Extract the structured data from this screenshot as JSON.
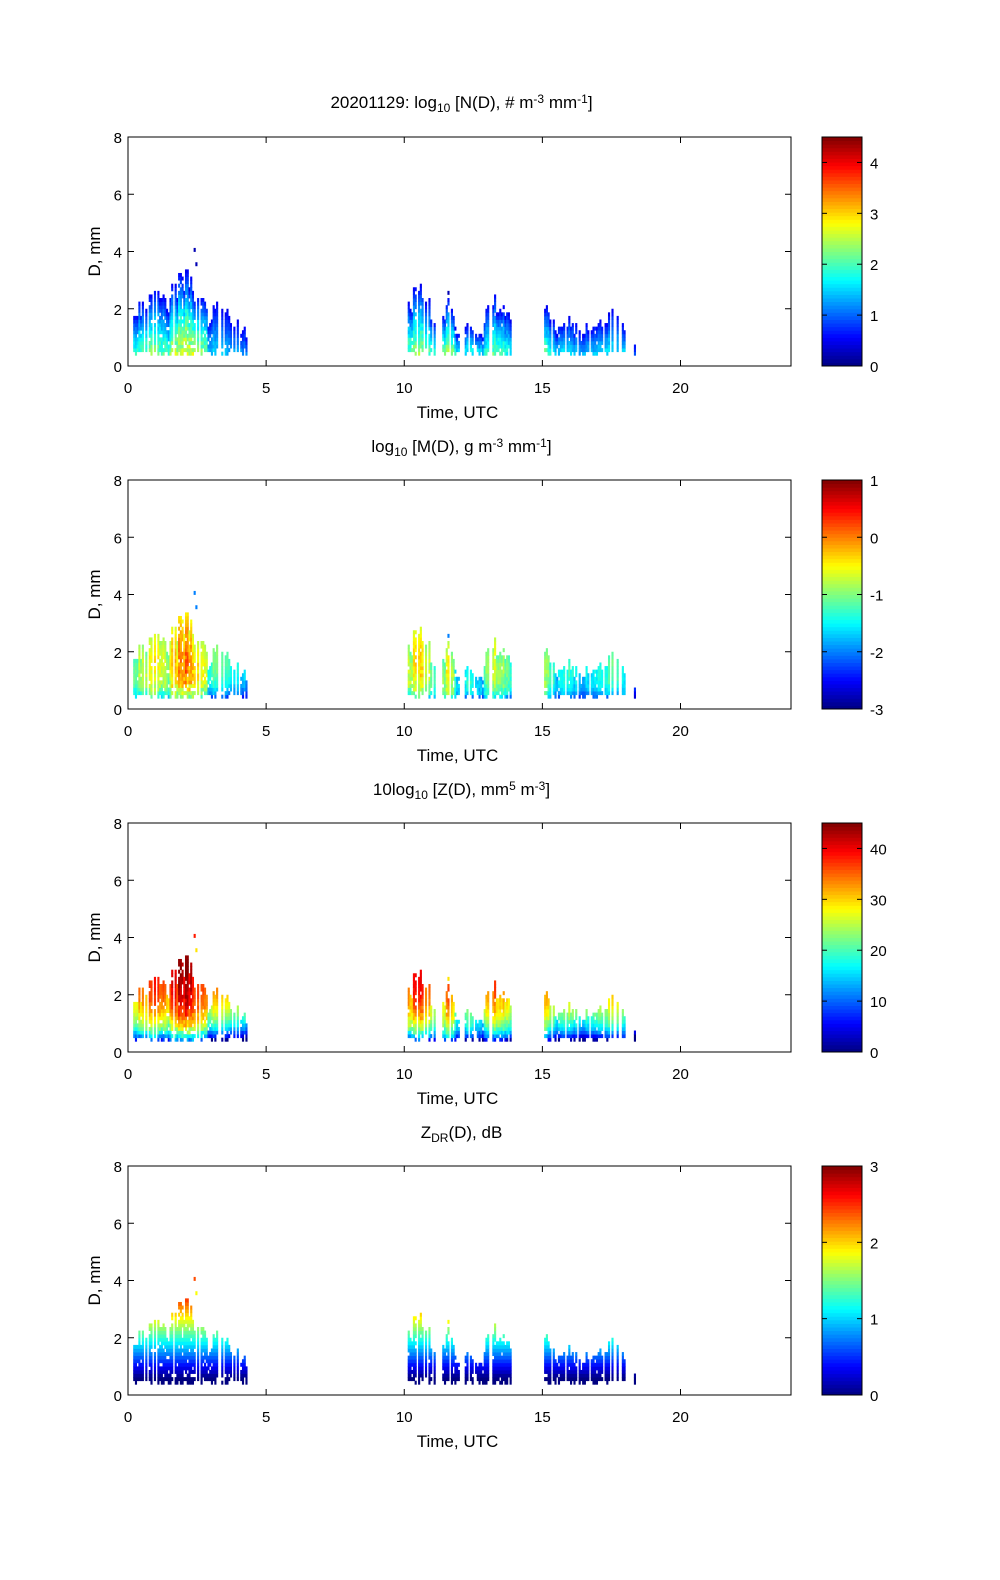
{
  "figure": {
    "date": "20201129",
    "background": "#ffffff"
  },
  "chart_data": [
    {
      "type": "heatmap",
      "title": {
        "prefix": "20201129: ",
        "parts": [
          [
            "log",
            ""
          ],
          [
            "10",
            "sub"
          ],
          [
            " [N(D), # m",
            ""
          ],
          [
            "-3",
            "sup"
          ],
          [
            " mm",
            ""
          ],
          [
            "-1",
            "sup"
          ],
          [
            "]",
            ""
          ]
        ]
      },
      "title_text": "20201129: log10 [N(D), # m-3 mm-1]",
      "xlabel": "Time, UTC",
      "ylabel": "D, mm",
      "xlim": [
        0,
        24
      ],
      "ylim": [
        0,
        8
      ],
      "xticks": [
        0,
        5,
        10,
        15,
        20
      ],
      "yticks": [
        0,
        2,
        4,
        6,
        8
      ],
      "colorbar": {
        "min": 0,
        "max": 4.5,
        "ticks": [
          0,
          1,
          2,
          3,
          4
        ],
        "colormap": "jet"
      },
      "variable": "N"
    },
    {
      "type": "heatmap",
      "title": {
        "prefix": "",
        "parts": [
          [
            "log",
            ""
          ],
          [
            "10",
            "sub"
          ],
          [
            " [M(D), g m",
            ""
          ],
          [
            "-3",
            "sup"
          ],
          [
            " mm",
            ""
          ],
          [
            "-1",
            "sup"
          ],
          [
            "]",
            ""
          ]
        ]
      },
      "title_text": "log10 [M(D), g m-3 mm-1]",
      "xlabel": "Time, UTC",
      "ylabel": "D, mm",
      "xlim": [
        0,
        24
      ],
      "ylim": [
        0,
        8
      ],
      "xticks": [
        0,
        5,
        10,
        15,
        20
      ],
      "yticks": [
        0,
        2,
        4,
        6,
        8
      ],
      "colorbar": {
        "min": -3,
        "max": 1,
        "ticks": [
          -3,
          -2,
          -1,
          0,
          1
        ],
        "colormap": "jet"
      },
      "variable": "M"
    },
    {
      "type": "heatmap",
      "title": {
        "prefix": "",
        "parts": [
          [
            "10log",
            ""
          ],
          [
            "10",
            "sub"
          ],
          [
            " [Z(D),  mm",
            ""
          ],
          [
            "5",
            "sup"
          ],
          [
            " m",
            ""
          ],
          [
            "-3",
            "sup"
          ],
          [
            "]",
            ""
          ]
        ]
      },
      "title_text": "10log10 [Z(D),  mm5 m-3]",
      "xlabel": "Time, UTC",
      "ylabel": "D, mm",
      "xlim": [
        0,
        24
      ],
      "ylim": [
        0,
        8
      ],
      "xticks": [
        0,
        5,
        10,
        15,
        20
      ],
      "yticks": [
        0,
        2,
        4,
        6,
        8
      ],
      "colorbar": {
        "min": 0,
        "max": 45,
        "ticks": [
          0,
          10,
          20,
          30,
          40
        ],
        "colormap": "jet"
      },
      "variable": "Z"
    },
    {
      "type": "heatmap",
      "title": {
        "prefix": "",
        "parts": [
          [
            "Z",
            ""
          ],
          [
            "DR",
            "sub"
          ],
          [
            "(D), dB",
            ""
          ]
        ]
      },
      "title_text": "ZDR(D), dB",
      "xlabel": "Time, UTC",
      "ylabel": "D, mm",
      "xlim": [
        0,
        24
      ],
      "ylim": [
        0,
        8
      ],
      "xticks": [
        0,
        5,
        10,
        15,
        20
      ],
      "yticks": [
        0,
        2,
        4,
        6,
        8
      ],
      "colorbar": {
        "min": 0,
        "max": 3,
        "ticks": [
          0,
          1,
          2,
          3
        ],
        "colormap": "jet"
      },
      "variable": "ZDR"
    }
  ],
  "precip_events": [
    {
      "t_start": 0.2,
      "t_end": 1.5,
      "peak_t": 0.9,
      "max_D": 2.9,
      "intensity": 0.75
    },
    {
      "t_start": 1.5,
      "t_end": 2.9,
      "peak_t": 2.1,
      "max_D": 3.5,
      "intensity": 0.95
    },
    {
      "t_start": 2.9,
      "t_end": 4.3,
      "peak_t": 3.2,
      "max_D": 2.2,
      "intensity": 0.45
    },
    {
      "t_start": 10.1,
      "t_end": 11.1,
      "peak_t": 10.5,
      "max_D": 2.9,
      "intensity": 0.8
    },
    {
      "t_start": 11.4,
      "t_end": 11.9,
      "peak_t": 11.6,
      "max_D": 2.4,
      "intensity": 0.85
    },
    {
      "t_start": 11.9,
      "t_end": 12.9,
      "peak_t": 12.4,
      "max_D": 1.6,
      "intensity": 0.55
    },
    {
      "t_start": 12.9,
      "t_end": 13.9,
      "peak_t": 13.3,
      "max_D": 2.5,
      "intensity": 0.7
    },
    {
      "t_start": 14.8,
      "t_end": 15.5,
      "peak_t": 15.0,
      "max_D": 2.6,
      "intensity": 0.7
    },
    {
      "t_start": 15.5,
      "t_end": 16.4,
      "peak_t": 15.9,
      "max_D": 1.8,
      "intensity": 0.5
    },
    {
      "t_start": 16.4,
      "t_end": 18.0,
      "peak_t": 17.4,
      "max_D": 2.0,
      "intensity": 0.5
    },
    {
      "t_start": 18.3,
      "t_end": 18.4,
      "peak_t": 18.35,
      "max_D": 1.0,
      "intensity": 0.2
    }
  ],
  "isolated_points": [
    {
      "t": 2.4,
      "D": 4.0
    },
    {
      "t": 2.45,
      "D": 3.5
    },
    {
      "t": 11.6,
      "D": 2.6
    }
  ]
}
